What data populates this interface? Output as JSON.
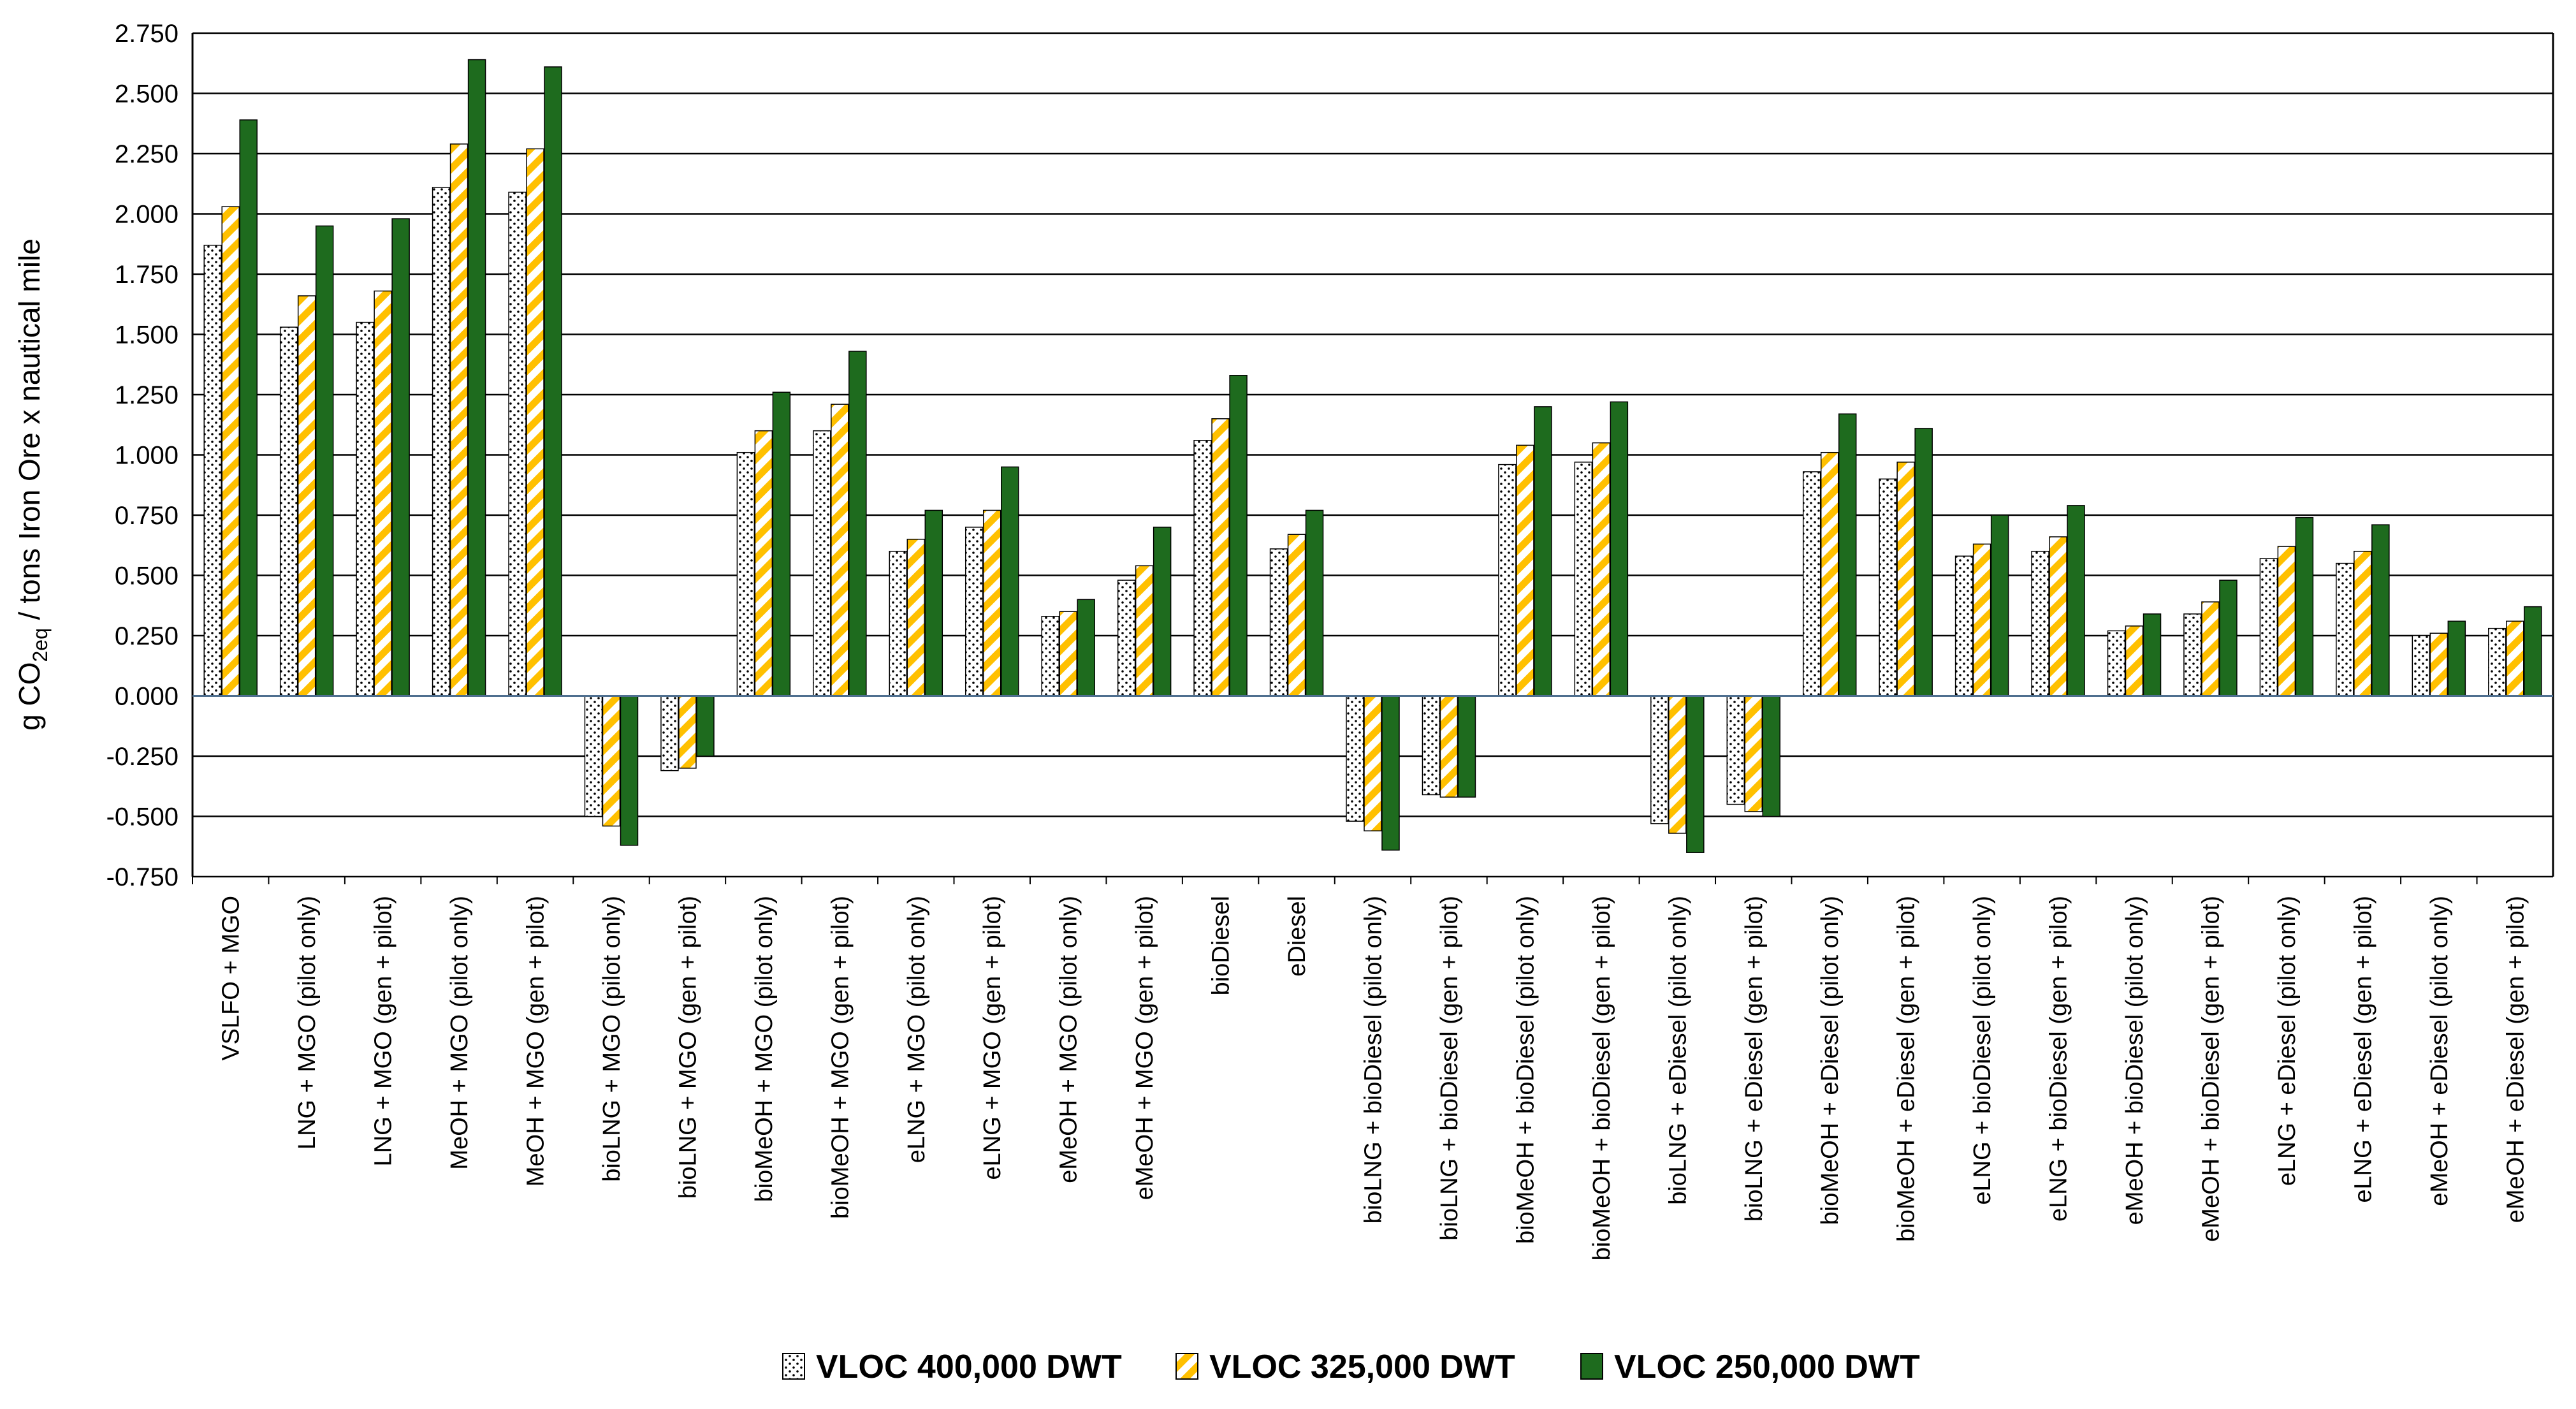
{
  "chart_data": {
    "type": "bar",
    "ylabel": {
      "prefix": "g CO",
      "sub": "2eq",
      "suffix": " / tons Iron Ore x  nautical mile"
    },
    "ylim": [
      -0.75,
      2.75
    ],
    "yticks": [
      "2.750",
      "2.500",
      "2.250",
      "2.000",
      "1.750",
      "1.500",
      "1.250",
      "1.000",
      "0.750",
      "0.500",
      "0.250",
      "0.000",
      "-0.250",
      "-0.500",
      "-0.750"
    ],
    "ytick_values": [
      2.75,
      2.5,
      2.25,
      2.0,
      1.75,
      1.5,
      1.25,
      1.0,
      0.75,
      0.5,
      0.25,
      0.0,
      -0.25,
      -0.5,
      -0.75
    ],
    "grid": true,
    "legend_position": "bottom",
    "categories": [
      "VSLFO + MGO",
      "LNG + MGO (pilot only)",
      "LNG + MGO (gen + pilot)",
      "MeOH + MGO (pilot only)",
      "MeOH + MGO (gen + pilot)",
      "bioLNG + MGO (pilot only)",
      "bioLNG + MGO (gen + pilot)",
      "bioMeOH + MGO (pilot only)",
      "bioMeOH + MGO (gen + pilot)",
      "eLNG + MGO (pilot only)",
      "eLNG + MGO (gen + pilot)",
      "eMeOH + MGO (pilot only)",
      "eMeOH + MGO (gen + pilot)",
      "bioDiesel",
      "eDiesel",
      "bioLNG + bioDiesel (pilot only)",
      "bioLNG + bioDiesel (gen + pilot)",
      "bioMeOH + bioDiesel (pilot only)",
      "bioMeOH + bioDiesel (gen + pilot)",
      "bioLNG + eDiesel (pilot only)",
      "bioLNG + eDiesel (gen + pilot)",
      "bioMeOH + eDiesel (pilot only)",
      "bioMeOH + eDiesel (gen + pilot)",
      "eLNG + bioDiesel (pilot only)",
      "eLNG + bioDiesel (gen + pilot)",
      "eMeOH + bioDiesel (pilot only)",
      "eMeOH + bioDiesel (gen + pilot)",
      "eLNG + eDiesel (pilot only)",
      "eLNG + eDiesel (gen + pilot)",
      "eMeOH + eDiesel (pilot only)",
      "eMeOH + eDiesel (gen + pilot)"
    ],
    "series": [
      {
        "name": "VLOC 400,000 DWT",
        "pattern": "dots",
        "color": "#ffffff",
        "values": [
          1.87,
          1.53,
          1.55,
          2.11,
          2.09,
          -0.5,
          -0.31,
          1.01,
          1.1,
          0.6,
          0.7,
          0.33,
          0.48,
          1.06,
          0.61,
          -0.52,
          -0.41,
          0.96,
          0.97,
          -0.53,
          -0.45,
          0.93,
          0.9,
          0.58,
          0.6,
          0.27,
          0.34,
          0.57,
          0.55,
          0.25,
          0.28
        ]
      },
      {
        "name": "VLOC 325,000 DWT",
        "pattern": "stripes",
        "color": "#ffc000",
        "values": [
          2.03,
          1.66,
          1.68,
          2.29,
          2.27,
          -0.54,
          -0.3,
          1.1,
          1.21,
          0.65,
          0.77,
          0.35,
          0.54,
          1.15,
          0.67,
          -0.56,
          -0.42,
          1.04,
          1.05,
          -0.57,
          -0.48,
          1.01,
          0.97,
          0.63,
          0.66,
          0.29,
          0.39,
          0.62,
          0.6,
          0.26,
          0.31
        ]
      },
      {
        "name": "VLOC 250,000 DWT",
        "pattern": "solid",
        "color": "#1e6b1e",
        "values": [
          2.39,
          1.95,
          1.98,
          2.64,
          2.61,
          -0.62,
          -0.25,
          1.26,
          1.43,
          0.77,
          0.95,
          0.4,
          0.7,
          1.33,
          0.77,
          -0.64,
          -0.42,
          1.2,
          1.22,
          -0.65,
          -0.5,
          1.17,
          1.11,
          0.75,
          0.79,
          0.34,
          0.48,
          0.74,
          0.71,
          0.31,
          0.37
        ]
      }
    ]
  }
}
